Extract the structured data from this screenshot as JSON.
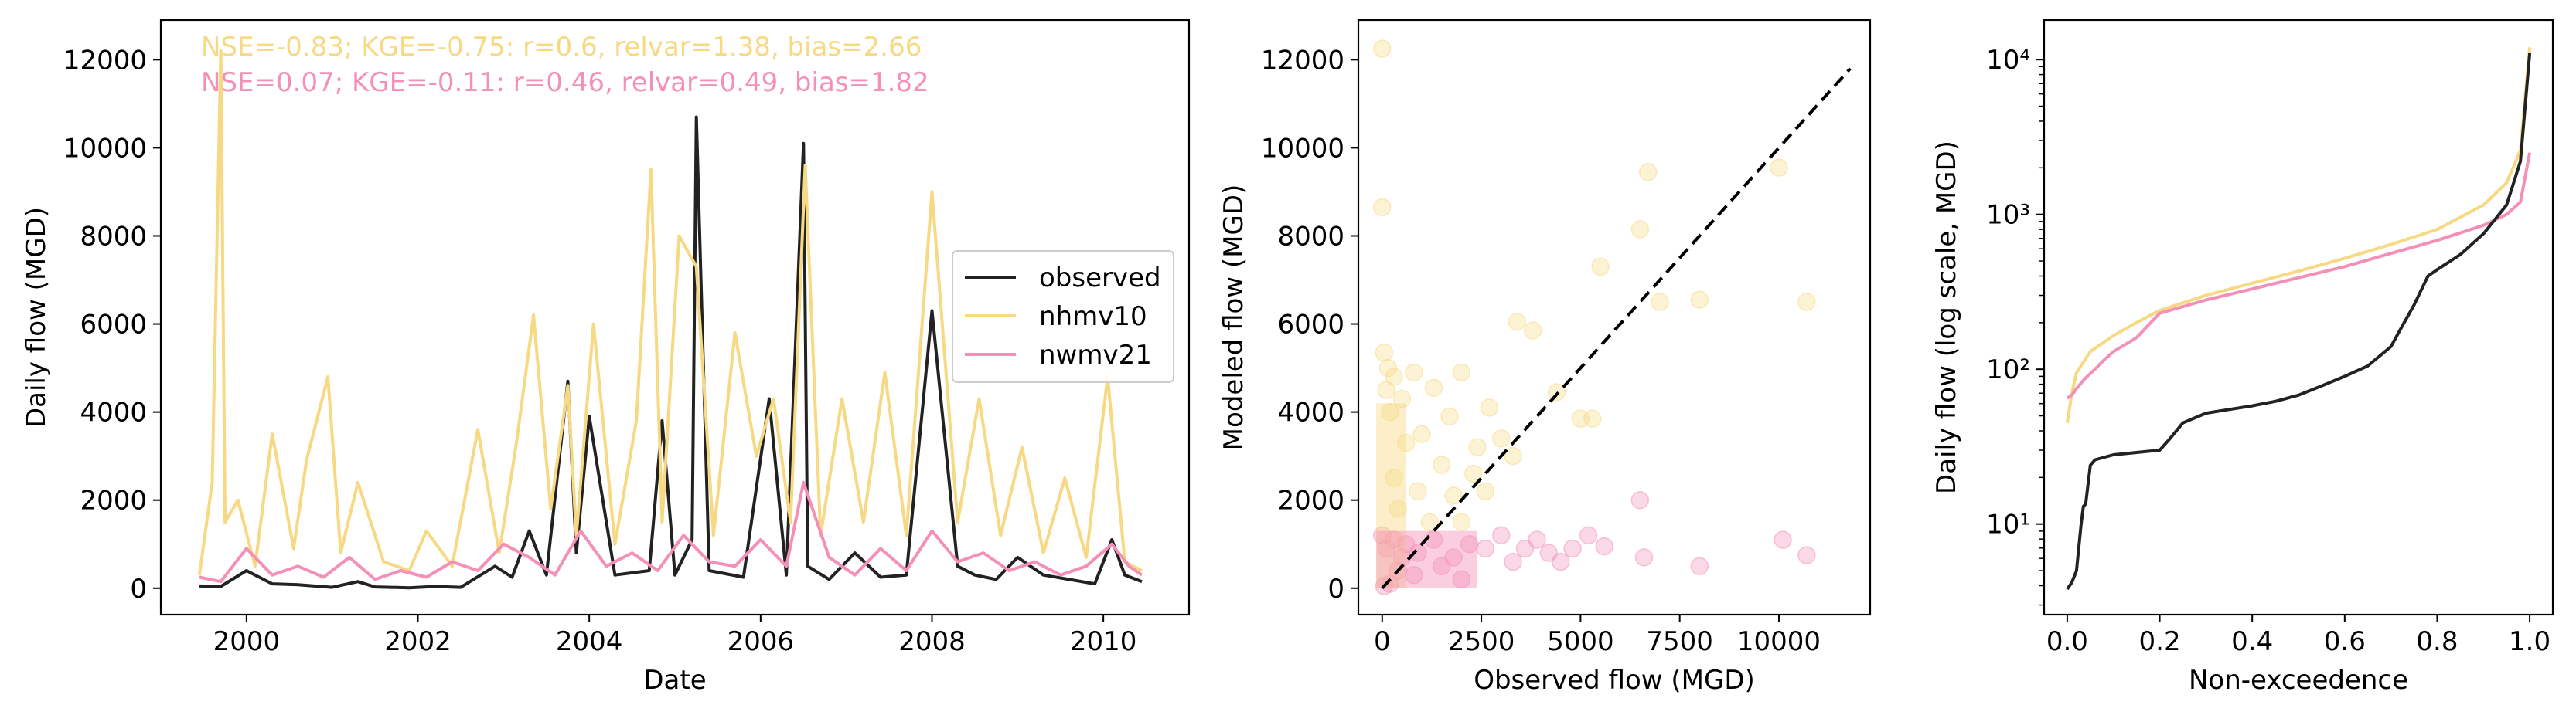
{
  "chart_data": [
    {
      "type": "line",
      "xlabel": "Date",
      "ylabel": "Daily flow (MGD)",
      "xlim": [
        1999.0,
        2011.0
      ],
      "ylim": [
        -600,
        12900
      ],
      "x_ticks": [
        2000,
        2002,
        2004,
        2006,
        2008,
        2010
      ],
      "y_ticks": [
        0,
        2000,
        4000,
        6000,
        8000,
        10000,
        12000
      ],
      "annotations": [
        {
          "text": "NSE=-0.83; KGE=-0.75: r=0.6, relvar=1.38, bias=2.66",
          "color": "#f7d984"
        },
        {
          "text": "NSE=0.07; KGE=-0.11: r=0.46, relvar=0.49, bias=1.82",
          "color": "#f490b8"
        }
      ],
      "legend": {
        "position": "center-right",
        "entries": [
          "observed",
          "nhmv10",
          "nwmv21"
        ]
      },
      "series": [
        {
          "name": "observed",
          "color": "#222222",
          "x": [
            1999.45,
            1999.7,
            2000.0,
            2000.3,
            2000.6,
            2001.0,
            2001.3,
            2001.5,
            2001.9,
            2002.2,
            2002.5,
            2002.9,
            2003.1,
            2003.3,
            2003.5,
            2003.75,
            2003.85,
            2004.0,
            2004.3,
            2004.7,
            2004.85,
            2005.0,
            2005.2,
            2005.25,
            2005.4,
            2005.8,
            2006.1,
            2006.3,
            2006.5,
            2006.55,
            2006.8,
            2007.1,
            2007.4,
            2007.7,
            2008.0,
            2008.3,
            2008.5,
            2008.75,
            2009.0,
            2009.3,
            2009.6,
            2009.9,
            2010.1,
            2010.25,
            2010.45
          ],
          "y": [
            50,
            40,
            400,
            100,
            80,
            20,
            150,
            30,
            10,
            40,
            20,
            500,
            250,
            1300,
            300,
            4700,
            800,
            3900,
            300,
            400,
            3800,
            300,
            1100,
            10700,
            400,
            250,
            4300,
            300,
            10100,
            500,
            200,
            800,
            250,
            300,
            6300,
            500,
            300,
            200,
            700,
            300,
            200,
            100,
            1100,
            300,
            150
          ]
        },
        {
          "name": "nhmv10",
          "color": "#f7d984",
          "x": [
            1999.45,
            1999.6,
            1999.7,
            1999.75,
            1999.9,
            2000.1,
            2000.3,
            2000.55,
            2000.7,
            2000.95,
            2001.1,
            2001.3,
            2001.6,
            2001.9,
            2002.1,
            2002.4,
            2002.7,
            2002.95,
            2003.15,
            2003.35,
            2003.55,
            2003.75,
            2003.85,
            2004.05,
            2004.3,
            2004.55,
            2004.72,
            2004.85,
            2005.05,
            2005.25,
            2005.45,
            2005.7,
            2005.95,
            2006.15,
            2006.35,
            2006.52,
            2006.7,
            2006.95,
            2007.2,
            2007.45,
            2007.7,
            2008.0,
            2008.3,
            2008.55,
            2008.8,
            2009.05,
            2009.3,
            2009.55,
            2009.8,
            2010.05,
            2010.25,
            2010.45
          ],
          "y": [
            300,
            2400,
            12200,
            1500,
            2000,
            500,
            3500,
            900,
            2900,
            4800,
            800,
            2400,
            600,
            400,
            1300,
            500,
            3600,
            800,
            3300,
            6200,
            1800,
            4600,
            1200,
            6000,
            1000,
            3800,
            9500,
            1500,
            8000,
            7300,
            1200,
            5800,
            3000,
            4300,
            1500,
            9600,
            1200,
            4300,
            1500,
            4900,
            1200,
            9000,
            1500,
            4300,
            1200,
            3200,
            800,
            2500,
            700,
            4800,
            600,
            400
          ]
        },
        {
          "name": "nwmv21",
          "color": "#f490b8",
          "x": [
            1999.45,
            1999.7,
            2000.0,
            2000.3,
            2000.6,
            2000.9,
            2001.2,
            2001.5,
            2001.8,
            2002.1,
            2002.4,
            2002.7,
            2003.0,
            2003.3,
            2003.6,
            2003.9,
            2004.2,
            2004.5,
            2004.8,
            2005.1,
            2005.4,
            2005.7,
            2006.0,
            2006.3,
            2006.5,
            2006.8,
            2007.1,
            2007.4,
            2007.7,
            2008.0,
            2008.3,
            2008.6,
            2008.9,
            2009.2,
            2009.5,
            2009.8,
            2010.1,
            2010.3,
            2010.45
          ],
          "y": [
            250,
            150,
            900,
            300,
            500,
            250,
            700,
            200,
            400,
            250,
            600,
            400,
            1000,
            700,
            300,
            1300,
            500,
            800,
            400,
            1200,
            600,
            500,
            1100,
            500,
            2400,
            700,
            300,
            900,
            400,
            1300,
            600,
            800,
            400,
            600,
            300,
            500,
            1000,
            500,
            300
          ]
        }
      ]
    },
    {
      "type": "scatter",
      "xlabel": "Observed flow (MGD)",
      "ylabel": "Modeled flow (MGD)",
      "xlim": [
        -600,
        12300
      ],
      "ylim": [
        -600,
        12900
      ],
      "x_ticks": [
        0,
        2500,
        5000,
        7500,
        10000
      ],
      "y_ticks": [
        0,
        2000,
        4000,
        6000,
        8000,
        10000,
        12000
      ],
      "reference_line": {
        "style": "dashed",
        "color": "#000000",
        "x": [
          0,
          11800
        ],
        "y": [
          0,
          11800
        ]
      },
      "series": [
        {
          "name": "nhmv10",
          "color": "#f7d984",
          "points": [
            [
              0,
              12250
            ],
            [
              0,
              8650
            ],
            [
              50,
              5350
            ],
            [
              150,
              5000
            ],
            [
              300,
              4800
            ],
            [
              100,
              4500
            ],
            [
              500,
              4300
            ],
            [
              200,
              4000
            ],
            [
              800,
              4900
            ],
            [
              1300,
              4550
            ],
            [
              2000,
              4900
            ],
            [
              2700,
              4100
            ],
            [
              1700,
              3900
            ],
            [
              2400,
              3200
            ],
            [
              3400,
              6050
            ],
            [
              3800,
              5850
            ],
            [
              4400,
              4450
            ],
            [
              5000,
              3850
            ],
            [
              5300,
              3850
            ],
            [
              5500,
              7300
            ],
            [
              6500,
              8150
            ],
            [
              6700,
              9450
            ],
            [
              7000,
              6500
            ],
            [
              8000,
              6550
            ],
            [
              10000,
              9550
            ],
            [
              10700,
              6500
            ],
            [
              1000,
              3500
            ],
            [
              600,
              3300
            ],
            [
              1500,
              2800
            ],
            [
              300,
              2500
            ],
            [
              900,
              2200
            ],
            [
              1800,
              2100
            ],
            [
              2300,
              2600
            ],
            [
              3000,
              3400
            ],
            [
              3300,
              3000
            ],
            [
              400,
              1800
            ],
            [
              1200,
              1500
            ],
            [
              2000,
              1500
            ],
            [
              2600,
              2200
            ]
          ]
        },
        {
          "name": "nwmv21",
          "color": "#f490b8",
          "points": [
            [
              0,
              1200
            ],
            [
              100,
              900
            ],
            [
              300,
              1100
            ],
            [
              600,
              1000
            ],
            [
              900,
              800
            ],
            [
              1300,
              1100
            ],
            [
              1800,
              700
            ],
            [
              2200,
              1000
            ],
            [
              2600,
              900
            ],
            [
              3000,
              1200
            ],
            [
              3300,
              600
            ],
            [
              3600,
              900
            ],
            [
              3900,
              1100
            ],
            [
              4200,
              800
            ],
            [
              4500,
              600
            ],
            [
              4800,
              900
            ],
            [
              5200,
              1200
            ],
            [
              5600,
              950
            ],
            [
              6500,
              2000
            ],
            [
              6600,
              700
            ],
            [
              8000,
              500
            ],
            [
              10100,
              1100
            ],
            [
              10700,
              750
            ],
            [
              400,
              400
            ],
            [
              800,
              300
            ],
            [
              1500,
              500
            ],
            [
              2000,
              200
            ],
            [
              200,
              100
            ],
            [
              50,
              50
            ],
            [
              500,
              700
            ]
          ]
        }
      ]
    },
    {
      "type": "line",
      "xlabel": "Non-exceedence",
      "ylabel": "Daily flow (log scale, MGD)",
      "yscale": "log",
      "xlim": [
        -0.05,
        1.05
      ],
      "ylim": [
        2.6,
        18000
      ],
      "x_ticks": [
        "0.0",
        "0.2",
        "0.4",
        "0.6",
        "0.8",
        "1.0"
      ],
      "y_ticks": [
        "10¹",
        "10²",
        "10³",
        "10⁴"
      ],
      "series": [
        {
          "name": "observed",
          "color": "#222222",
          "x": [
            0.0,
            0.01,
            0.02,
            0.03,
            0.035,
            0.04,
            0.05,
            0.06,
            0.1,
            0.15,
            0.2,
            0.22,
            0.25,
            0.3,
            0.35,
            0.4,
            0.45,
            0.5,
            0.55,
            0.6,
            0.65,
            0.7,
            0.72,
            0.75,
            0.78,
            0.8,
            0.85,
            0.9,
            0.95,
            0.98,
            1.0
          ],
          "y": [
            3.8,
            4.2,
            5,
            10,
            13,
            13.5,
            24,
            26,
            28,
            29,
            30,
            35,
            45,
            52,
            55,
            58,
            62,
            68,
            78,
            90,
            105,
            140,
            180,
            260,
            400,
            440,
            550,
            750,
            1150,
            2200,
            11000
          ]
        },
        {
          "name": "nhmv10",
          "color": "#f7d984",
          "x": [
            0.0,
            0.01,
            0.02,
            0.05,
            0.1,
            0.15,
            0.2,
            0.3,
            0.4,
            0.5,
            0.6,
            0.7,
            0.8,
            0.9,
            0.95,
            0.98,
            1.0
          ],
          "y": [
            45,
            70,
            95,
            130,
            165,
            200,
            240,
            300,
            360,
            430,
            520,
            640,
            800,
            1150,
            1600,
            2600,
            12000
          ]
        },
        {
          "name": "nwmv21",
          "color": "#f490b8",
          "x": [
            0.0,
            0.01,
            0.02,
            0.04,
            0.06,
            0.08,
            0.1,
            0.15,
            0.2,
            0.3,
            0.4,
            0.5,
            0.6,
            0.7,
            0.8,
            0.9,
            0.95,
            0.98,
            1.0
          ],
          "y": [
            65,
            68,
            75,
            88,
            100,
            115,
            130,
            160,
            230,
            280,
            330,
            390,
            460,
            560,
            680,
            850,
            1000,
            1200,
            2500
          ]
        }
      ]
    }
  ]
}
